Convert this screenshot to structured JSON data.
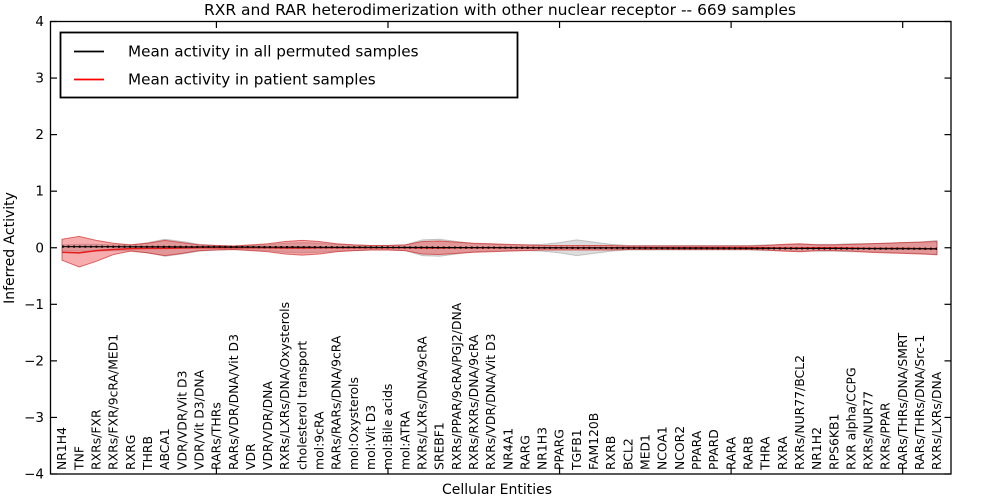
{
  "title": "RXR and RAR heterodimerization with other nuclear receptor -- 669 samples",
  "axes": {
    "xlabel": "Cellular Entities",
    "ylabel": "Inferred Activity",
    "ylim": [
      -4,
      4
    ],
    "yticks": [
      4,
      3,
      2,
      1,
      0,
      -1,
      -2,
      -3,
      -4
    ],
    "ytick_labels": [
      "4",
      "3",
      "2",
      "1",
      "0",
      "−1",
      "−2",
      "−3",
      "−4"
    ],
    "xtick_indices": [
      9,
      19,
      29,
      39,
      49
    ],
    "grid": "off"
  },
  "legend": {
    "position": "upper left",
    "entries": [
      {
        "label": "Mean activity in all permuted samples",
        "color": "#000000"
      },
      {
        "label": "Mean activity in patient samples",
        "color": "#ff0000"
      }
    ]
  },
  "colors": {
    "patient_band_fill": "rgba(235,50,50,0.40)",
    "patient_band_edge": "rgba(205,35,35,0.65)",
    "permuted_band_fill": "rgba(165,165,165,0.38)",
    "permuted_band_edge": "rgba(140,140,140,0.45)",
    "patient_line": "#e51c1c",
    "permuted_line": "#000000"
  },
  "chart_data": {
    "type": "area",
    "title": "RXR and RAR heterodimerization with other nuclear receptor -- 669 samples",
    "xlabel": "Cellular Entities",
    "ylabel": "Inferred Activity",
    "ylim": [
      -4,
      4
    ],
    "n_samples": 669,
    "categories": [
      "NR1H4",
      "TNF",
      "RXRs/FXR",
      "RXRs/FXR/9cRA/MED1",
      "RXRG",
      "THRB",
      "ABCA1",
      "VDR/VDR/Vit D3",
      "VDR/Vit D3/DNA",
      "RARs/THRs",
      "RARs/VDR/DNA/Vit D3",
      "VDR",
      "VDR/VDR/DNA",
      "RXRs/LXRs/DNA/Oxysterols",
      "cholesterol transport",
      "mol:9cRA",
      "RARs/RARs/DNA/9cRA",
      "mol:Oxysterols",
      "mol:Vit D3",
      "mol:Bile acids",
      "mol:ATRA",
      "RXRs/LXRs/DNA/9cRA",
      "SREBF1",
      "RXRs/PPAR/9cRA/PGJ2/DNA",
      "RXRs/RXRs/DNA/9cRA",
      "RXRs/VDR/DNA/Vit D3",
      "NR4A1",
      "RARG",
      "NR1H3",
      "PPARG",
      "TGFB1",
      "FAM120B",
      "RXRB",
      "BCL2",
      "MED1",
      "NCOA1",
      "NCOR2",
      "PPARA",
      "PPARD",
      "RARA",
      "RARB",
      "THRA",
      "RXRA",
      "RXRs/NUR77/BCL2",
      "NR1H2",
      "RPS6KB1",
      "RXR alpha/CCPG",
      "RXRs/NUR77",
      "RXRs/PPAR",
      "RARs/THRs/DNA/SMRT",
      "RARs/THRs/DNA/Src-1",
      "RXRs/LXRs/DNA"
    ],
    "series": [
      {
        "name": "Mean activity in all permuted samples",
        "role": "line",
        "style": "dotted",
        "color": "#000000",
        "values": [
          0.02,
          0.019,
          0.019,
          0.018,
          0.017,
          0.017,
          0.016,
          0.015,
          0.014,
          0.014,
          0.013,
          0.012,
          0.011,
          0.011,
          0.01,
          0.009,
          0.008,
          0.008,
          0.007,
          0.006,
          0.005,
          0.005,
          0.004,
          0.003,
          0.002,
          0.002,
          0.001,
          0,
          -0.001,
          -0.001,
          -0.002,
          -0.003,
          -0.004,
          -0.004,
          -0.005,
          -0.006,
          -0.007,
          -0.007,
          -0.008,
          -0.009,
          -0.01,
          -0.01,
          -0.011,
          -0.012,
          -0.013,
          -0.013,
          -0.014,
          -0.015,
          -0.016,
          -0.016,
          -0.017,
          -0.018
        ]
      },
      {
        "name": "Mean activity in patient samples",
        "role": "line",
        "style": "solid",
        "color": "#e51c1c",
        "values": [
          -0.08,
          -0.09,
          -0.05,
          -0.03,
          -0.015,
          -0.01,
          -0.01,
          -0.005,
          0,
          0,
          0,
          0,
          0,
          -0.005,
          -0.005,
          0,
          0,
          0,
          0,
          0,
          0,
          -0.005,
          -0.005,
          0,
          0,
          0,
          0,
          0,
          0,
          0,
          0,
          0,
          0,
          0,
          0,
          0,
          0,
          0,
          0,
          0,
          0,
          0,
          -0.005,
          -0.005,
          0,
          0,
          -0.005,
          -0.01,
          -0.01,
          -0.012,
          -0.015,
          -0.02
        ]
      },
      {
        "name": "Permuted samples spread",
        "role": "band",
        "fill": "rgba(165,165,165,0.38)",
        "edge": "rgba(140,140,140,0.45)",
        "upper": [
          0.05,
          0.06,
          0.06,
          0.05,
          0.05,
          0.09,
          0.15,
          0.11,
          0.06,
          0.04,
          0.03,
          0.04,
          0.05,
          0.08,
          0.09,
          0.08,
          0.06,
          0.05,
          0.04,
          0.04,
          0.05,
          0.14,
          0.15,
          0.11,
          0.07,
          0.06,
          0.05,
          0.05,
          0.06,
          0.09,
          0.14,
          0.1,
          0.06,
          0.04,
          0.04,
          0.04,
          0.04,
          0.04,
          0.04,
          0.04,
          0.04,
          0.05,
          0.05,
          0.06,
          0.06,
          0.06,
          0.07,
          0.07,
          0.08,
          0.09,
          0.1,
          0.13
        ],
        "lower": [
          -0.05,
          -0.06,
          -0.06,
          -0.05,
          -0.05,
          -0.09,
          -0.15,
          -0.11,
          -0.06,
          -0.04,
          -0.03,
          -0.04,
          -0.05,
          -0.08,
          -0.09,
          -0.08,
          -0.06,
          -0.05,
          -0.04,
          -0.04,
          -0.05,
          -0.14,
          -0.15,
          -0.11,
          -0.07,
          -0.06,
          -0.05,
          -0.05,
          -0.06,
          -0.09,
          -0.14,
          -0.1,
          -0.06,
          -0.04,
          -0.04,
          -0.04,
          -0.04,
          -0.04,
          -0.04,
          -0.04,
          -0.04,
          -0.05,
          -0.05,
          -0.06,
          -0.06,
          -0.06,
          -0.07,
          -0.07,
          -0.08,
          -0.09,
          -0.1,
          -0.13
        ]
      },
      {
        "name": "Patient samples spread",
        "role": "band",
        "fill": "rgba(235,50,50,0.40)",
        "edge": "rgba(205,35,35,0.65)",
        "upper": [
          0.15,
          0.2,
          0.13,
          0.08,
          0.05,
          0.08,
          0.13,
          0.09,
          0.05,
          0.04,
          0.03,
          0.05,
          0.07,
          0.11,
          0.13,
          0.11,
          0.07,
          0.05,
          0.04,
          0.04,
          0.05,
          0.11,
          0.12,
          0.1,
          0.08,
          0.07,
          0.06,
          0.05,
          0.04,
          0.04,
          0.04,
          0.04,
          0.04,
          0.03,
          0.03,
          0.03,
          0.03,
          0.03,
          0.03,
          0.03,
          0.03,
          0.04,
          0.06,
          0.07,
          0.05,
          0.05,
          0.06,
          0.07,
          0.08,
          0.09,
          0.1,
          0.11
        ],
        "lower": [
          -0.22,
          -0.34,
          -0.24,
          -0.12,
          -0.06,
          -0.09,
          -0.14,
          -0.1,
          -0.05,
          -0.04,
          -0.03,
          -0.05,
          -0.07,
          -0.11,
          -0.13,
          -0.11,
          -0.07,
          -0.05,
          -0.04,
          -0.04,
          -0.05,
          -0.11,
          -0.12,
          -0.1,
          -0.08,
          -0.07,
          -0.06,
          -0.05,
          -0.04,
          -0.04,
          -0.04,
          -0.04,
          -0.04,
          -0.03,
          -0.03,
          -0.03,
          -0.03,
          -0.03,
          -0.03,
          -0.03,
          -0.03,
          -0.04,
          -0.06,
          -0.07,
          -0.05,
          -0.05,
          -0.06,
          -0.08,
          -0.09,
          -0.1,
          -0.11,
          -0.12
        ]
      }
    ],
    "legend_position": "upper left",
    "xtick_label_rotation": 90
  }
}
